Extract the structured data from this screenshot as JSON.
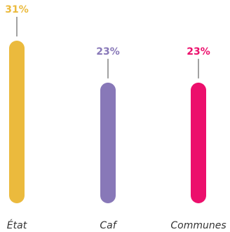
{
  "chart_data": {
    "type": "bar",
    "categories": [
      "État",
      "Caf",
      "Communes"
    ],
    "values": [
      31,
      23,
      23
    ],
    "value_labels": [
      "31%",
      "23%",
      "23%"
    ],
    "colors": [
      "#ebba3d",
      "#8878b8",
      "#ec0f6c"
    ],
    "ylim": [
      0,
      31
    ],
    "title": "",
    "xlabel": "",
    "ylabel": "",
    "grid": false,
    "legend": "none"
  }
}
